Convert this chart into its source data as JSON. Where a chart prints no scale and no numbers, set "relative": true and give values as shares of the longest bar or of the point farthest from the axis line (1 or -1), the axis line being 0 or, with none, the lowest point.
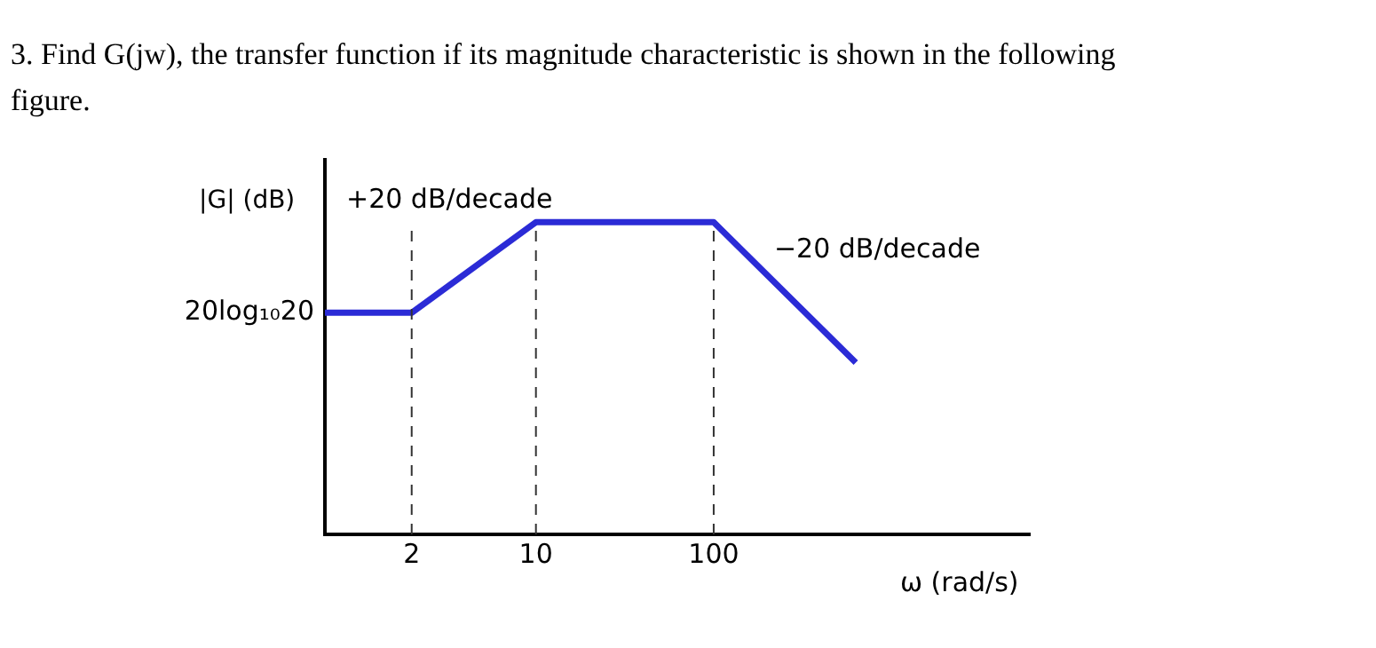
{
  "chart_data": {
    "type": "line",
    "title": "3.  Find G(jw), the transfer function if its magnitude characteristic is shown in the following figure.",
    "ylabel": "|G| (dB)",
    "xlabel": "ω (rad/s)",
    "relative": true,
    "log": "x",
    "xlim": [
      0.65,
      6000
    ],
    "xticks": [
      2,
      10,
      100
    ],
    "tick_labels": "x",
    "grid": false,
    "legend": false,
    "marker": "none",
    "line_style": "solid",
    "x": [
      0.65,
      2,
      10,
      100,
      630
    ],
    "series": [
      {
        "color": "#2b2bd6",
        "values": [
          0.71,
          0.71,
          1,
          1,
          0.55
        ]
      }
    ],
    "ref_lines": [
      {
        "axis": "x",
        "value": 2,
        "line_style": "dashed",
        "color": "#333333"
      },
      {
        "axis": "x",
        "value": 10,
        "line_style": "dashed",
        "color": "#333333"
      },
      {
        "axis": "x",
        "value": 100,
        "line_style": "dashed",
        "color": "#333333"
      }
    ],
    "annotations": [
      "20log₁₀20",
      "+20 dB/decade",
      "−20 dB/decade"
    ]
  }
}
